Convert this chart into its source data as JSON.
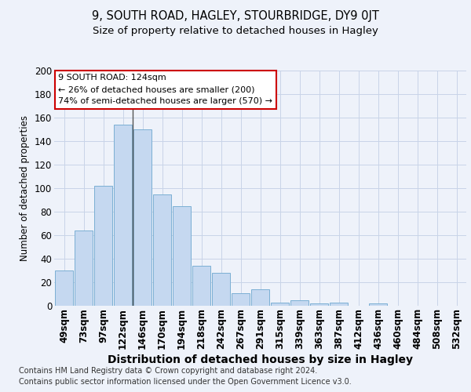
{
  "title1": "9, SOUTH ROAD, HAGLEY, STOURBRIDGE, DY9 0JT",
  "title2": "Size of property relative to detached houses in Hagley",
  "xlabel": "Distribution of detached houses by size in Hagley",
  "ylabel": "Number of detached properties",
  "bar_labels": [
    "49sqm",
    "73sqm",
    "97sqm",
    "122sqm",
    "146sqm",
    "170sqm",
    "194sqm",
    "218sqm",
    "242sqm",
    "267sqm",
    "291sqm",
    "315sqm",
    "339sqm",
    "363sqm",
    "387sqm",
    "412sqm",
    "436sqm",
    "460sqm",
    "484sqm",
    "508sqm",
    "532sqm"
  ],
  "bar_values": [
    30,
    64,
    102,
    154,
    150,
    95,
    85,
    34,
    28,
    11,
    14,
    3,
    5,
    2,
    3,
    0,
    2,
    0,
    0,
    0,
    0
  ],
  "bar_color": "#c5d8f0",
  "bar_edge_color": "#7bafd4",
  "annotation_line1": "9 SOUTH ROAD: 124sqm",
  "annotation_line2": "← 26% of detached houses are smaller (200)",
  "annotation_line3": "74% of semi-detached houses are larger (570) →",
  "annotation_box_color": "#ffffff",
  "annotation_box_edge": "#cc0000",
  "vline_color": "#555555",
  "grid_color": "#c8d4e8",
  "background_color": "#eef2fa",
  "ylim": [
    0,
    200
  ],
  "yticks": [
    0,
    20,
    40,
    60,
    80,
    100,
    120,
    140,
    160,
    180,
    200
  ],
  "vline_x": 3.5,
  "footer1": "Contains HM Land Registry data © Crown copyright and database right 2024.",
  "footer2": "Contains public sector information licensed under the Open Government Licence v3.0.",
  "title1_fontsize": 10.5,
  "title2_fontsize": 9.5,
  "xlabel_fontsize": 10,
  "ylabel_fontsize": 8.5,
  "tick_fontsize": 8.5,
  "footer_fontsize": 7
}
